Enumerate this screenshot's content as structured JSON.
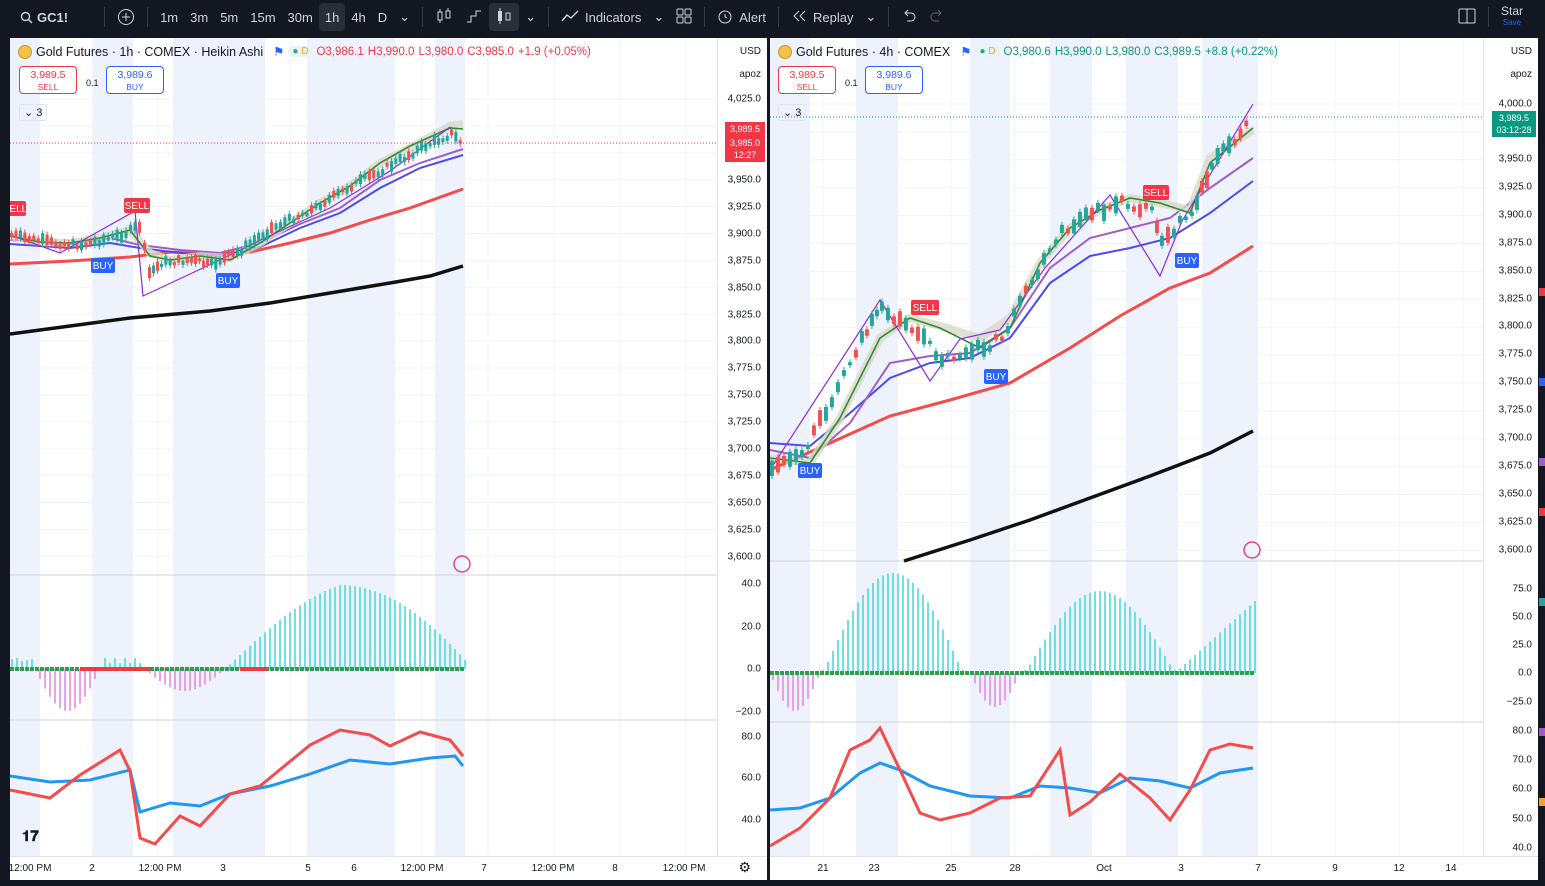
{
  "toolbar": {
    "symbol": "GC1!",
    "intervals": [
      "1m",
      "3m",
      "5m",
      "15m",
      "30m",
      "1h",
      "4h",
      "D"
    ],
    "active_interval": "1h",
    "indicators_label": "Indicators",
    "alert_label": "Alert",
    "replay_label": "Replay",
    "star_label": "Star",
    "save_label": "Save"
  },
  "left": {
    "title": "Gold Futures · 1h · COMEX · Heikin Ashi",
    "ohlc": {
      "o": "O3,986.1",
      "h": "H3,990.0",
      "l": "L3,980.0",
      "c": "C3,985.0",
      "chg": "+1.9 (+0.05%)"
    },
    "sell_price": "3,989.5",
    "sell_label": "SELL",
    "spread": "0.1",
    "buy_price": "3,989.6",
    "buy_label": "BUY",
    "collapse_count": "3",
    "currency": "USD",
    "scale": "apoz",
    "price_ticks": [
      "4,025.0",
      "3,950.0",
      "3,925.0",
      "3,900.0",
      "3,875.0",
      "3,850.0",
      "3,825.0",
      "3,800.0",
      "3,775.0",
      "3,750.0",
      "3,725.0",
      "3,700.0",
      "3,675.0",
      "3,650.0",
      "3,625.0",
      "3,600.0"
    ],
    "price_tag_1": "3,989.5",
    "price_tag_2": "3,985.0",
    "price_tag_3": "12:27",
    "osc_ticks": [
      "40.0",
      "20.0",
      "0.0",
      "−20.0"
    ],
    "rsi_ticks": [
      "80.0",
      "60.0",
      "40.0"
    ],
    "x_ticks": [
      "12:00 PM",
      "2",
      "12:00 PM",
      "3",
      "5",
      "6",
      "12:00 PM",
      "7",
      "12:00 PM",
      "8",
      "12:00 PM"
    ],
    "markers": [
      "SELL",
      "SELL",
      "BUY",
      "BUY"
    ]
  },
  "right": {
    "title": "Gold Futures · 4h · COMEX",
    "ohlc": {
      "o": "O3,980.6",
      "h": "H3,990.0",
      "l": "L3,980.0",
      "c": "C3,989.5",
      "chg": "+8.8 (+0.22%)"
    },
    "sell_price": "3,989.5",
    "sell_label": "SELL",
    "spread": "0.1",
    "buy_price": "3,989.6",
    "buy_label": "BUY",
    "collapse_count": "3",
    "currency": "USD",
    "scale": "apoz",
    "price_ticks": [
      "4,000.0",
      "3,950.0",
      "3,925.0",
      "3,900.0",
      "3,875.0",
      "3,850.0",
      "3,825.0",
      "3,800.0",
      "3,775.0",
      "3,750.0",
      "3,725.0",
      "3,700.0",
      "3,675.0",
      "3,650.0",
      "3,625.0",
      "3,600.0"
    ],
    "price_tag_1": "3,989.5",
    "price_tag_2": "03:12:28",
    "osc_ticks": [
      "75.0",
      "50.0",
      "25.0",
      "0.0",
      "−25.0"
    ],
    "rsi_ticks": [
      "80.0",
      "70.0",
      "60.0",
      "50.0",
      "40.0"
    ],
    "x_ticks": [
      "21",
      "23",
      "25",
      "28",
      "Oct",
      "3",
      "7",
      "9",
      "12",
      "14"
    ],
    "markers": [
      "SELL",
      "SELL",
      "BUY",
      "BUY",
      "BUY"
    ]
  },
  "colors": {
    "bg": "#131722",
    "up": "#26a69a",
    "down": "#ef5350",
    "ema_red": "#f44b4b",
    "ema_blue": "#4b4bf0",
    "ema_purple": "#a05cc8",
    "black": "#111111",
    "buy": "#2962ff",
    "sell": "#f23645"
  }
}
